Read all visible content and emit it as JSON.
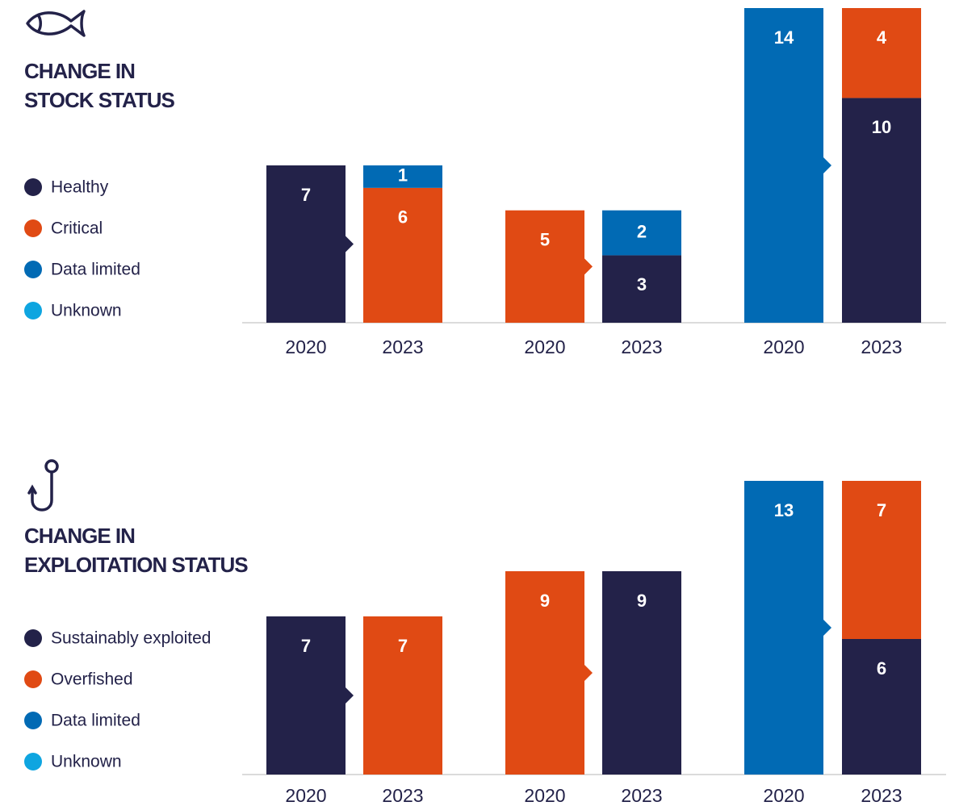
{
  "chart_data": [
    {
      "type": "bar",
      "stacked": true,
      "title": [
        "CHANGE IN",
        "STOCK STATUS"
      ],
      "categories": [
        "2020",
        "2023",
        "2020",
        "2023",
        "2020",
        "2023"
      ],
      "series": [
        {
          "name": "Healthy",
          "color": "#232249",
          "values": [
            7,
            null,
            null,
            3,
            null,
            10
          ]
        },
        {
          "name": "Critical",
          "color": "#e04a14",
          "values": [
            null,
            6,
            5,
            null,
            null,
            4
          ]
        },
        {
          "name": "Data limited",
          "color": "#016ab4",
          "values": [
            null,
            1,
            null,
            2,
            14,
            null
          ]
        },
        {
          "name": "Unknown",
          "color": "#0ea5e0",
          "values": [
            null,
            null,
            null,
            null,
            null,
            null
          ]
        }
      ],
      "ylim": [
        0,
        14
      ]
    },
    {
      "type": "bar",
      "stacked": true,
      "title": [
        "CHANGE IN",
        "EXPLOITATION STATUS"
      ],
      "categories": [
        "2020",
        "2023",
        "2020",
        "2023",
        "2020",
        "2023"
      ],
      "series": [
        {
          "name": "Sustainably exploited",
          "color": "#232249",
          "values": [
            7,
            null,
            null,
            9,
            null,
            6
          ]
        },
        {
          "name": "Overfished",
          "color": "#e04a14",
          "values": [
            null,
            7,
            9,
            null,
            null,
            7
          ]
        },
        {
          "name": "Data limited",
          "color": "#016ab4",
          "values": [
            null,
            null,
            null,
            null,
            13,
            null
          ]
        },
        {
          "name": "Unknown",
          "color": "#0ea5e0",
          "values": [
            null,
            null,
            null,
            null,
            null,
            null
          ]
        }
      ],
      "ylim": [
        0,
        13
      ]
    }
  ]
}
